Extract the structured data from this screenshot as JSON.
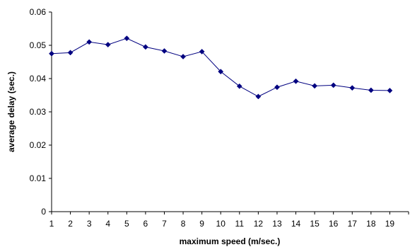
{
  "chart_data": {
    "type": "line",
    "title": "",
    "xlabel": "maximum speed (m/sec.)",
    "ylabel": "average delay (sec.)",
    "x": [
      1,
      2,
      3,
      4,
      5,
      6,
      7,
      8,
      9,
      10,
      11,
      12,
      13,
      14,
      15,
      16,
      17,
      18,
      19
    ],
    "series": [
      {
        "values": [
          0.0475,
          0.0478,
          0.051,
          0.0502,
          0.0521,
          0.0495,
          0.0483,
          0.0466,
          0.0481,
          0.0421,
          0.0377,
          0.0346,
          0.0374,
          0.0392,
          0.0378,
          0.038,
          0.0372,
          0.0365,
          0.0364
        ],
        "color": "#000080",
        "marker": "diamond"
      }
    ],
    "xlim": [
      1,
      20
    ],
    "ylim": [
      0,
      0.06
    ],
    "yticks": [
      "0",
      "0.01",
      "0.02",
      "0.03",
      "0.04",
      "0.05",
      "0.06"
    ],
    "xticks": [
      "1",
      "2",
      "3",
      "4",
      "5",
      "6",
      "7",
      "8",
      "9",
      "10",
      "11",
      "12",
      "13",
      "14",
      "15",
      "16",
      "17",
      "18",
      "19"
    ],
    "grid": false,
    "legend": "none"
  }
}
